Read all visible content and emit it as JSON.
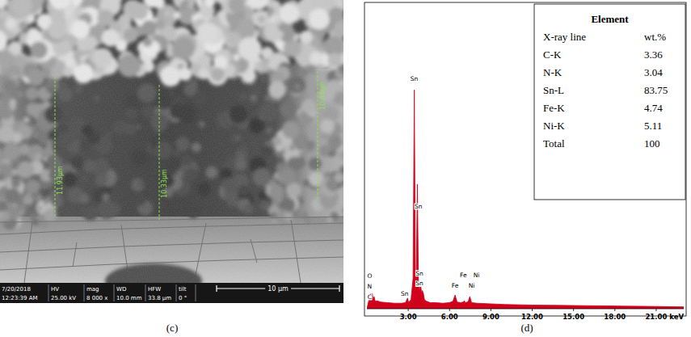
{
  "chart_data": {
    "type": "line",
    "caption": "(d)",
    "x_label": "keV",
    "color": "#d0021b",
    "x": [
      0,
      0.15,
      0.28,
      0.33,
      0.39,
      0.45,
      0.52,
      0.6,
      0.8,
      1.0,
      1.5,
      2.0,
      2.5,
      2.8,
      2.95,
      3.0,
      3.05,
      3.2,
      3.35,
      3.44,
      3.52,
      3.58,
      3.66,
      3.74,
      3.8,
      3.9,
      3.97,
      4.03,
      4.1,
      4.18,
      4.3,
      4.6,
      5.0,
      5.5,
      6.0,
      6.25,
      6.4,
      6.55,
      6.8,
      7.0,
      7.06,
      7.15,
      7.35,
      7.47,
      7.6,
      8.0,
      9.0,
      10.0,
      12.0,
      14.0,
      16.0,
      18.0,
      20.0,
      21.5,
      23
    ],
    "values": [
      0,
      3,
      5,
      3.5,
      5,
      3,
      4,
      2.5,
      2.5,
      2.2,
      2,
      1.8,
      1.8,
      2,
      3.5,
      2.5,
      2.2,
      3,
      10,
      72,
      12,
      8,
      41,
      10,
      6,
      8,
      5,
      6,
      5,
      3,
      2.5,
      2,
      2,
      1.8,
      2,
      2.5,
      4.5,
      2.2,
      2,
      2.2,
      2.6,
      2,
      2.3,
      4,
      2,
      1.8,
      1.6,
      1.4,
      1.2,
      1.1,
      1,
      0.9,
      0.8,
      0.7,
      0.6
    ],
    "xlim": [
      0,
      23
    ],
    "ylim": [
      0,
      100
    ],
    "xticks": [
      {
        "value": 3,
        "label": "3.00"
      },
      {
        "value": 6,
        "label": "6.00"
      },
      {
        "value": 9,
        "label": "9.00"
      },
      {
        "value": 12,
        "label": "12.00"
      },
      {
        "value": 15,
        "label": "15.00"
      },
      {
        "value": 18,
        "label": "18.00"
      },
      {
        "value": 21,
        "label": "21.00"
      }
    ],
    "tick_labels": "x",
    "annotations": [
      {
        "text": "Sn",
        "x": 3.44,
        "y": 75
      },
      {
        "text": "Sn",
        "x": 3.74,
        "y": 33
      },
      {
        "text": "Sn",
        "x": 3.82,
        "y": 11
      },
      {
        "text": "Sn",
        "x": 3.82,
        "y": 7.6
      },
      {
        "text": "Sn",
        "x": 2.75,
        "y": 4.2
      },
      {
        "text": "O",
        "x": 0.2,
        "y": 10
      },
      {
        "text": "N",
        "x": 0.2,
        "y": 6.6
      },
      {
        "text": "C",
        "x": 0.2,
        "y": 3.2
      },
      {
        "text": "Fe",
        "x": 6.4,
        "y": 7
      },
      {
        "text": "Fe",
        "x": 7.0,
        "y": 10.5
      },
      {
        "text": "Ni",
        "x": 7.6,
        "y": 7
      },
      {
        "text": "Ni",
        "x": 7.95,
        "y": 10.5
      }
    ],
    "table": {
      "title": "Element",
      "columns": [
        "X-ray line",
        "wt.%"
      ],
      "rows": [
        [
          "C-K",
          3.36
        ],
        [
          "N-K",
          3.04
        ],
        [
          "Sn-L",
          83.75
        ],
        [
          "Fe-K",
          4.74
        ],
        [
          "Ni-K",
          5.11
        ],
        [
          "Total",
          100
        ]
      ]
    }
  },
  "micrograph": {
    "caption": "(c)",
    "date": "7/20/2018",
    "time": "12:23:39 AM",
    "info_headers": [
      "HV",
      "mag",
      "WD",
      "HFW",
      "tilt"
    ],
    "info_values": [
      "25.00 kV",
      "8 000 x",
      "10.0 mm",
      "33.8 µm",
      "0 °"
    ],
    "scale_bar": "10 µm",
    "measurements": [
      "11.93µm",
      "10.33µm",
      "10.64µm"
    ]
  }
}
